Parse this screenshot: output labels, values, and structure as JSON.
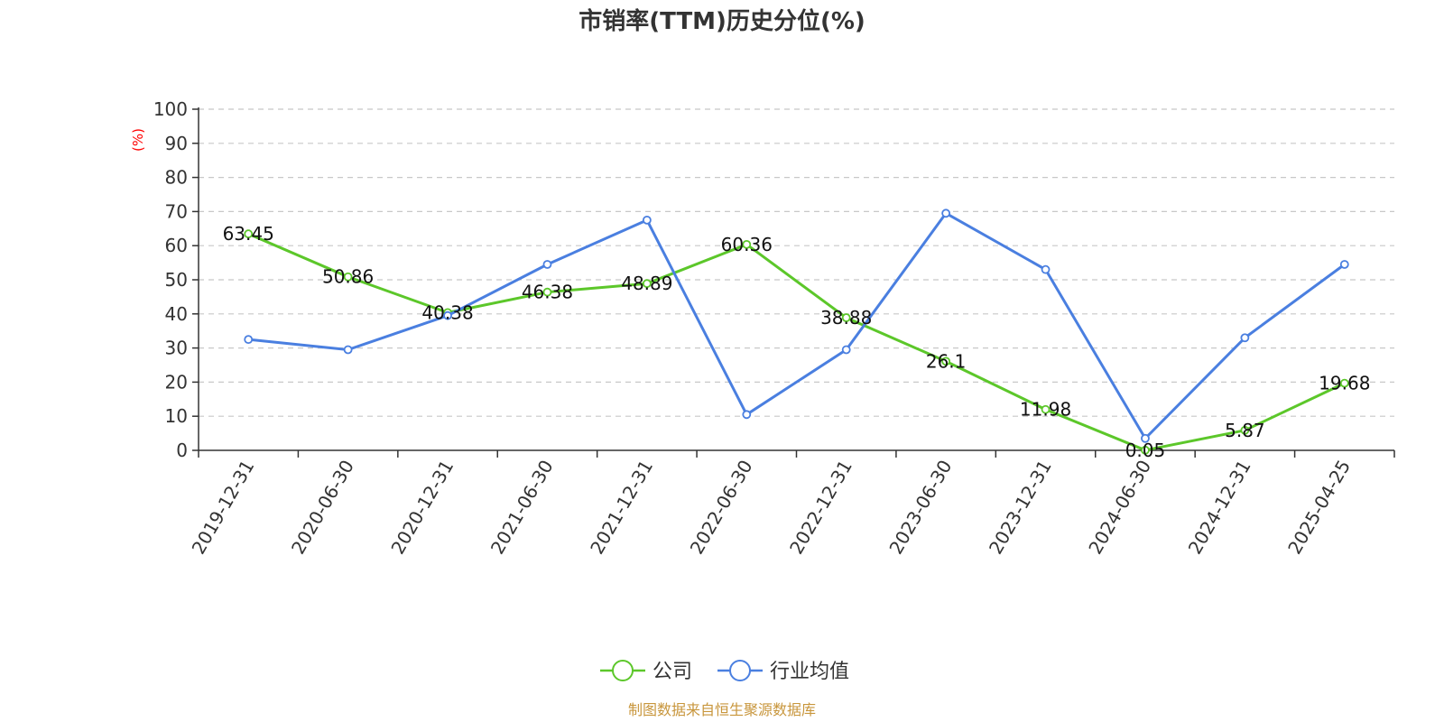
{
  "chart_data": {
    "type": "line",
    "title": "市销率(TTM)历史分位(%)",
    "ylabel": "(%)",
    "xlabel": "",
    "ylim": [
      0,
      100
    ],
    "yticks": [
      0,
      10,
      20,
      30,
      40,
      50,
      60,
      70,
      80,
      90,
      100
    ],
    "categories": [
      "2019-12-31",
      "2020-06-30",
      "2020-12-31",
      "2021-06-30",
      "2021-12-31",
      "2022-06-30",
      "2022-12-31",
      "2023-06-30",
      "2023-12-31",
      "2024-06-30",
      "2024-12-31",
      "2025-04-25"
    ],
    "grid": true,
    "legend_position": "bottom",
    "series": [
      {
        "name": "公司",
        "color": "#5cc72a",
        "values": [
          63.45,
          50.86,
          40.38,
          46.38,
          48.89,
          60.36,
          38.88,
          26.1,
          11.98,
          0.05,
          5.87,
          19.68
        ],
        "labels": [
          "63.45",
          "50.86",
          "40.38",
          "46.38",
          "48.89",
          "60.36",
          "38.88",
          "26.1",
          "11.98",
          "0.05",
          "5.87",
          "19.68"
        ]
      },
      {
        "name": "行业均值",
        "color": "#4a7fe0",
        "values": [
          32.5,
          29.5,
          39.5,
          54.5,
          67.5,
          10.5,
          29.5,
          69.5,
          53.0,
          3.5,
          33.0,
          54.5
        ]
      }
    ],
    "source": "制图数据来自恒生聚源数据库"
  }
}
